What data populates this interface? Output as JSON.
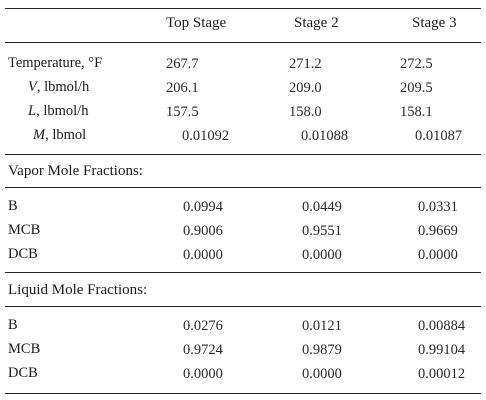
{
  "headers": [
    "Top Stage",
    "Stage 2",
    "Stage 3"
  ],
  "parameters": [
    {
      "var": "",
      "label": "Temperature, °F",
      "values": [
        "267.7",
        "271.2",
        "272.5"
      ]
    },
    {
      "var": "V",
      "label": ", lbmol/h",
      "values": [
        "206.1",
        "209.0",
        "209.5"
      ]
    },
    {
      "var": "L",
      "label": ", lbmol/h",
      "values": [
        "157.5",
        "158.0",
        "158.1"
      ]
    },
    {
      "var": "M",
      "label": ", lbmol",
      "values": [
        "0.01092",
        "0.01088",
        "0.01087"
      ]
    }
  ],
  "vapor": {
    "title": "Vapor Mole Fractions:",
    "rows": [
      {
        "label": "B",
        "values": [
          "0.0994",
          "0.0449",
          "0.0331"
        ]
      },
      {
        "label": "MCB",
        "values": [
          "0.9006",
          "0.9551",
          "0.9669"
        ]
      },
      {
        "label": "DCB",
        "values": [
          "0.0000",
          "0.0000",
          "0.0000"
        ]
      }
    ]
  },
  "liquid": {
    "title": "Liquid Mole Fractions:",
    "rows": [
      {
        "label": "B",
        "values": [
          "0.0276",
          "0.0121",
          "0.00884"
        ]
      },
      {
        "label": "MCB",
        "values": [
          "0.9724",
          "0.9879",
          "0.99104"
        ]
      },
      {
        "label": "DCB",
        "values": [
          "0.0000",
          "0.0000",
          "0.00012"
        ]
      }
    ]
  }
}
